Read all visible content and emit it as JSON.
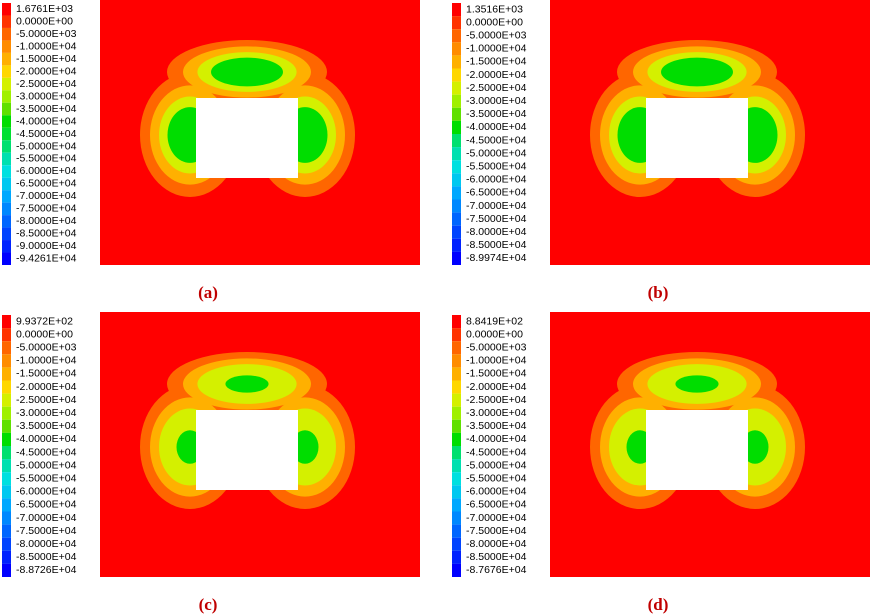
{
  "panels": [
    {
      "caption": "(a)",
      "legend": [
        "1.6761E+03",
        "0.0000E+00",
        "-5.0000E+03",
        "-1.0000E+04",
        "-1.5000E+04",
        "-2.0000E+04",
        "-2.5000E+04",
        "-3.0000E+04",
        "-3.5000E+04",
        "-4.0000E+04",
        "-4.5000E+04",
        "-5.0000E+04",
        "-5.5000E+04",
        "-6.0000E+04",
        "-6.5000E+04",
        "-7.0000E+04",
        "-7.5000E+04",
        "-8.0000E+04",
        "-8.5000E+04",
        "-9.0000E+04",
        "-9.4261E+04"
      ]
    },
    {
      "caption": "(b)",
      "legend": [
        "1.3516E+03",
        "0.0000E+00",
        "-5.0000E+03",
        "-1.0000E+04",
        "-1.5000E+04",
        "-2.0000E+04",
        "-2.5000E+04",
        "-3.0000E+04",
        "-3.5000E+04",
        "-4.0000E+04",
        "-4.5000E+04",
        "-5.0000E+04",
        "-5.5000E+04",
        "-6.0000E+04",
        "-6.5000E+04",
        "-7.0000E+04",
        "-7.5000E+04",
        "-8.0000E+04",
        "-8.5000E+04",
        "-8.9974E+04"
      ]
    },
    {
      "caption": "(c)",
      "legend": [
        "9.9372E+02",
        "0.0000E+00",
        "-5.0000E+03",
        "-1.0000E+04",
        "-1.5000E+04",
        "-2.0000E+04",
        "-2.5000E+04",
        "-3.0000E+04",
        "-3.5000E+04",
        "-4.0000E+04",
        "-4.5000E+04",
        "-5.0000E+04",
        "-5.5000E+04",
        "-6.0000E+04",
        "-6.5000E+04",
        "-7.0000E+04",
        "-7.5000E+04",
        "-8.0000E+04",
        "-8.5000E+04",
        "-8.8726E+04"
      ]
    },
    {
      "caption": "(d)",
      "legend": [
        "8.8419E+02",
        "0.0000E+00",
        "-5.0000E+03",
        "-1.0000E+04",
        "-1.5000E+04",
        "-2.0000E+04",
        "-2.5000E+04",
        "-3.0000E+04",
        "-3.5000E+04",
        "-4.0000E+04",
        "-4.5000E+04",
        "-5.0000E+04",
        "-5.5000E+04",
        "-6.0000E+04",
        "-6.5000E+04",
        "-7.0000E+04",
        "-7.5000E+04",
        "-8.0000E+04",
        "-8.5000E+04",
        "-8.7676E+04"
      ]
    }
  ]
}
